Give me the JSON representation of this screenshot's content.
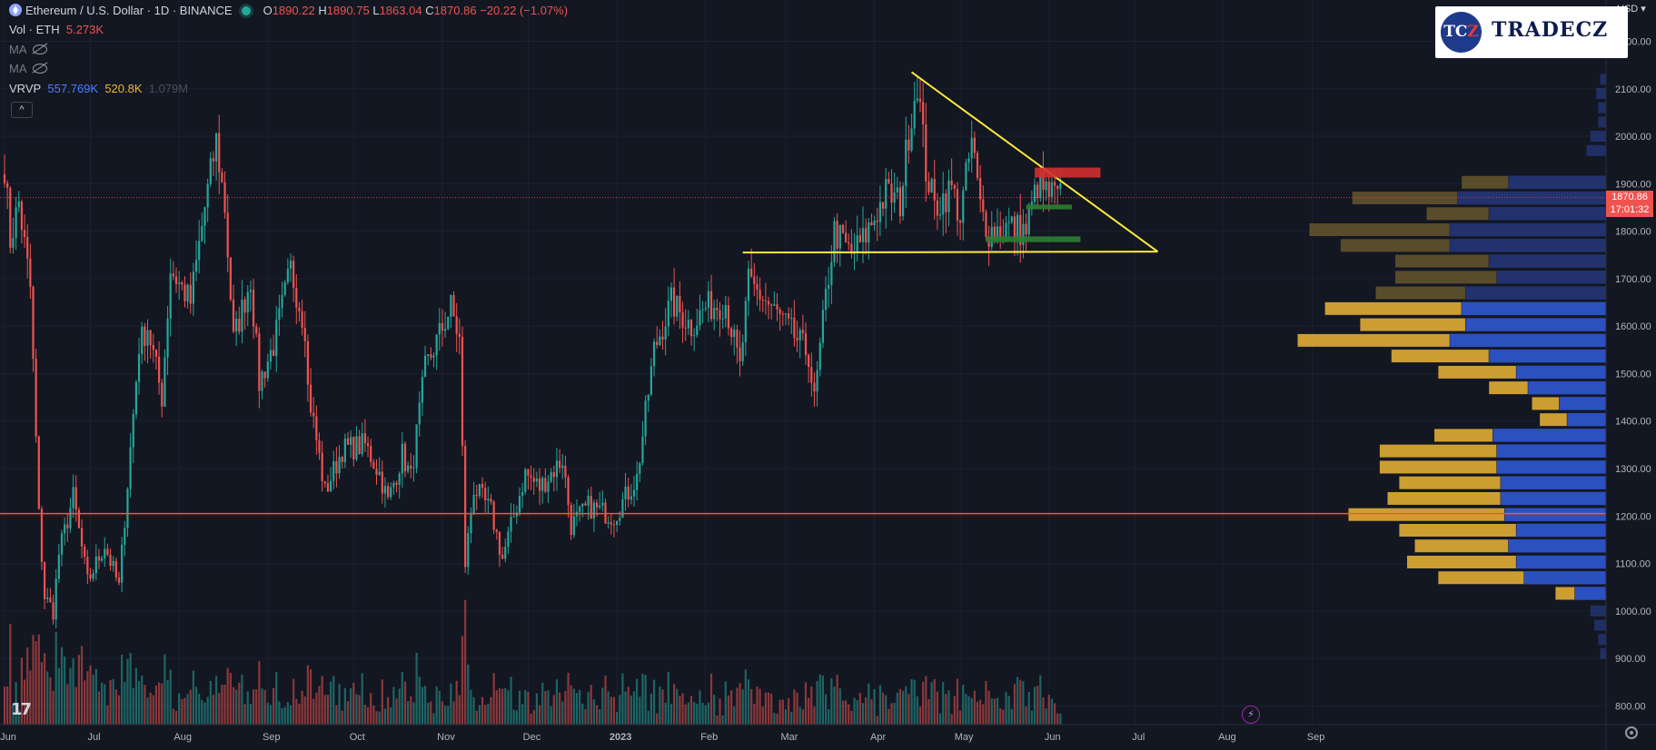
{
  "legend": {
    "symbol": "Ethereum / U.S. Dollar · 1D · BINANCE",
    "ohlc": {
      "o_label": "O",
      "o": "1890.22",
      "h_label": "H",
      "h": "1890.75",
      "l_label": "L",
      "l": "1863.04",
      "c_label": "C",
      "c": "1870.86",
      "change": "−20.22 (−1.07%)"
    },
    "volume": {
      "label": "Vol · ETH",
      "value": "5.273K"
    },
    "ma1": "MA",
    "ma2": "MA",
    "vrvp": {
      "label": "VRVP",
      "up": "557.769K",
      "down": "520.8K",
      "total": "1.079M"
    },
    "collapse": "^"
  },
  "currency": "USD",
  "logo": {
    "disc_left": "TC",
    "disc_right": "Z",
    "word": "TRADECZ"
  },
  "last_price": {
    "price": "1870.86",
    "countdown": "17:01:32"
  },
  "colors": {
    "up": "#26a69a",
    "down": "#ef5350",
    "trend": "#ffeb3b",
    "support": "#ff5722",
    "zone_red": "#d32f2f",
    "zone_green": "#2e7d32",
    "vp_up": "#d6a633",
    "vp_down": "#2f56d0"
  },
  "chart_data": {
    "type": "candlestick",
    "title": "Ethereum / U.S. Dollar · 1D · BINANCE",
    "x_ticks": [
      "Jun",
      "Jul",
      "Aug",
      "Sep",
      "Oct",
      "Nov",
      "Dec",
      "2023",
      "Feb",
      "Mar",
      "Apr",
      "May",
      "Jun",
      "Jul",
      "Aug",
      "Sep"
    ],
    "y_ticks": [
      800,
      900,
      1000,
      1100,
      1200,
      1300,
      1400,
      1500,
      1600,
      1700,
      1800,
      1900,
      2000,
      2100,
      2200
    ],
    "ylim": [
      775,
      2240
    ],
    "start": "2022-06-01",
    "end": "2023-09-30",
    "last_bar": "2023-06-05",
    "anchors": [
      [
        "2022-06-01",
        1940
      ],
      [
        "2022-06-03",
        1780
      ],
      [
        "2022-06-06",
        1860
      ],
      [
        "2022-06-10",
        1680
      ],
      [
        "2022-06-13",
        1200
      ],
      [
        "2022-06-15",
        1030
      ],
      [
        "2022-06-18",
        1000
      ],
      [
        "2022-06-20",
        1120
      ],
      [
        "2022-06-25",
        1240
      ],
      [
        "2022-06-30",
        1060
      ],
      [
        "2022-07-06",
        1140
      ],
      [
        "2022-07-11",
        1050
      ],
      [
        "2022-07-18",
        1560
      ],
      [
        "2022-07-21",
        1600
      ],
      [
        "2022-07-26",
        1450
      ],
      [
        "2022-07-29",
        1720
      ],
      [
        "2022-08-05",
        1650
      ],
      [
        "2022-08-10",
        1850
      ],
      [
        "2022-08-14",
        1990
      ],
      [
        "2022-08-17",
        1850
      ],
      [
        "2022-08-20",
        1570
      ],
      [
        "2022-08-26",
        1700
      ],
      [
        "2022-08-29",
        1480
      ],
      [
        "2022-09-03",
        1560
      ],
      [
        "2022-09-09",
        1720
      ],
      [
        "2022-09-14",
        1600
      ],
      [
        "2022-09-15",
        1470
      ],
      [
        "2022-09-21",
        1250
      ],
      [
        "2022-09-27",
        1340
      ],
      [
        "2022-10-05",
        1350
      ],
      [
        "2022-10-10",
        1290
      ],
      [
        "2022-10-13",
        1230
      ],
      [
        "2022-10-18",
        1330
      ],
      [
        "2022-10-21",
        1280
      ],
      [
        "2022-10-26",
        1510
      ],
      [
        "2022-11-04",
        1640
      ],
      [
        "2022-11-07",
        1570
      ],
      [
        "2022-11-09",
        1100
      ],
      [
        "2022-11-12",
        1260
      ],
      [
        "2022-11-18",
        1210
      ],
      [
        "2022-11-22",
        1110
      ],
      [
        "2022-11-30",
        1290
      ],
      [
        "2022-12-05",
        1260
      ],
      [
        "2022-12-13",
        1320
      ],
      [
        "2022-12-16",
        1180
      ],
      [
        "2022-12-22",
        1220
      ],
      [
        "2022-12-31",
        1200
      ],
      [
        "2023-01-08",
        1280
      ],
      [
        "2023-01-14",
        1550
      ],
      [
        "2023-01-20",
        1650
      ],
      [
        "2023-01-27",
        1600
      ],
      [
        "2023-02-01",
        1640
      ],
      [
        "2023-02-08",
        1650
      ],
      [
        "2023-02-13",
        1510
      ],
      [
        "2023-02-16",
        1690
      ],
      [
        "2023-02-21",
        1660
      ],
      [
        "2023-02-28",
        1610
      ],
      [
        "2023-03-09",
        1540
      ],
      [
        "2023-03-11",
        1440
      ],
      [
        "2023-03-15",
        1660
      ],
      [
        "2023-03-18",
        1800
      ],
      [
        "2023-03-24",
        1750
      ],
      [
        "2023-03-28",
        1780
      ],
      [
        "2023-04-05",
        1880
      ],
      [
        "2023-04-10",
        1860
      ],
      [
        "2023-04-13",
        2010
      ],
      [
        "2023-04-16",
        2120
      ],
      [
        "2023-04-19",
        1930
      ],
      [
        "2023-04-22",
        1850
      ],
      [
        "2023-04-28",
        1890
      ],
      [
        "2023-05-01",
        1830
      ],
      [
        "2023-05-05",
        1990
      ],
      [
        "2023-05-08",
        1850
      ],
      [
        "2023-05-11",
        1800
      ],
      [
        "2023-05-18",
        1810
      ],
      [
        "2023-05-24",
        1800
      ],
      [
        "2023-05-28",
        1900
      ],
      [
        "2023-05-31",
        1880
      ],
      [
        "2023-06-05",
        1870
      ]
    ],
    "annotations": [
      {
        "type": "line",
        "name": "resistance-trendline",
        "x1": "2023-04-14",
        "y1": 2135,
        "x2": "2023-07-09",
        "y2": 1757
      },
      {
        "type": "line",
        "name": "support-trendline",
        "x1": "2023-02-14",
        "y1": 1755,
        "x2": "2023-07-09",
        "y2": 1757
      },
      {
        "type": "hline",
        "name": "support-1200",
        "y": 1205
      },
      {
        "type": "zone",
        "name": "resistance-zone",
        "x1": "2023-05-27",
        "x2": "2023-06-19",
        "y1": 1913,
        "y2": 1934
      },
      {
        "type": "zone",
        "name": "support-zone-upper",
        "x1": "2023-05-24",
        "x2": "2023-06-09",
        "y1": 1846,
        "y2": 1856
      },
      {
        "type": "zone",
        "name": "support-zone-lower",
        "x1": "2023-05-10",
        "x2": "2023-06-12",
        "y1": 1777,
        "y2": 1789
      }
    ],
    "volume_profile": {
      "bin_prices": [
        1037,
        1070,
        1103,
        1137,
        1170,
        1203,
        1237,
        1270,
        1303,
        1337,
        1370,
        1403,
        1437,
        1470,
        1503,
        1537,
        1570,
        1603,
        1637,
        1670,
        1703,
        1737,
        1770,
        1803,
        1837,
        1870,
        1903
      ],
      "up": [
        0.05,
        0.22,
        0.28,
        0.24,
        0.3,
        0.4,
        0.29,
        0.26,
        0.3,
        0.3,
        0.15,
        0.07,
        0.07,
        0.1,
        0.2,
        0.25,
        0.39,
        0.27,
        0.35,
        0.23,
        0.26,
        0.24,
        0.28,
        0.36,
        0.16,
        0.27,
        0.12
      ],
      "down": [
        0.08,
        0.21,
        0.23,
        0.25,
        0.23,
        0.26,
        0.27,
        0.27,
        0.28,
        0.28,
        0.29,
        0.1,
        0.12,
        0.2,
        0.23,
        0.3,
        0.4,
        0.36,
        0.37,
        0.36,
        0.28,
        0.3,
        0.4,
        0.4,
        0.3,
        0.38,
        0.25
      ]
    }
  }
}
